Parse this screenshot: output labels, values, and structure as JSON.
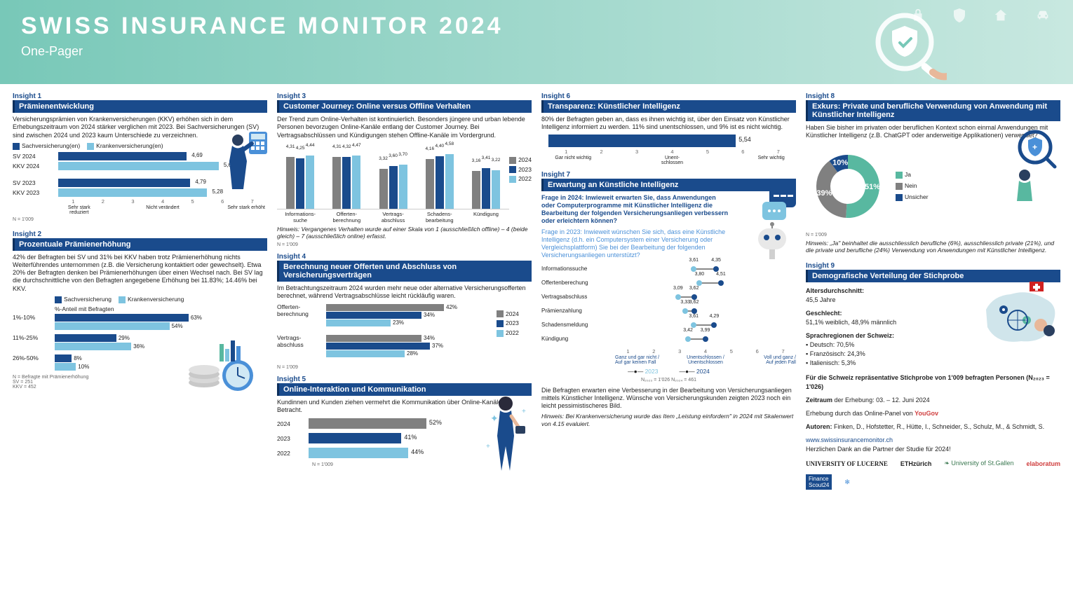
{
  "colors": {
    "navy": "#1a4b8c",
    "blue": "#4a90d8",
    "sky": "#7ec4e0",
    "grey": "#808080",
    "teal": "#58b8a0"
  },
  "header": {
    "title": "SWISS INSURANCE MONITOR 2024",
    "subtitle": "One-Pager"
  },
  "i1": {
    "label": "Insight 1",
    "title": "Prämienentwicklung",
    "text": "Versicherungsprämien von Krankenversicherungen (KKV) erhöhen sich in dem Erhebungszeitraum von 2024 stärker verglichen mit 2023. Bei Sachversicherungen (SV) sind zwischen 2024 und 2023 kaum Unterschiede zu verzeichnen.",
    "legend": [
      {
        "c": "#1a4b8c",
        "t": "Sachversicherung(en)"
      },
      {
        "c": "#7ec4e0",
        "t": "Krankenversicherung(en)"
      }
    ],
    "rows": [
      {
        "lbl": "SV  2024",
        "v": 4.69,
        "c": "#1a4b8c"
      },
      {
        "lbl": "KKV 2024",
        "v": 5.61,
        "c": "#7ec4e0"
      },
      {
        "lbl": "SV  2023",
        "v": 4.79,
        "c": "#1a4b8c"
      },
      {
        "lbl": "KKV 2023",
        "v": 5.28,
        "c": "#7ec4e0"
      }
    ],
    "scale": {
      "min": 1,
      "max": 7,
      "ticks": [
        "1",
        "2",
        "3",
        "4",
        "5",
        "6",
        "7"
      ],
      "labels": [
        "Sehr stark reduziert",
        "",
        "Nicht verändert",
        "",
        "Sehr stark erhöht"
      ]
    },
    "note": "N = 1'009"
  },
  "i2": {
    "label": "Insight 2",
    "title": "Prozentuale Prämienerhöhung",
    "text": "42% der Befragten bei SV und 31% bei KKV haben trotz Prämienerhöhung nichts Weiterführendes unternommen (z.B. die Versicherung kontaktiert oder gewechselt). Etwa 20% der Befragten denken bei Prämienerhöhungen über einen Wechsel nach. Bei SV lag die durchschnittliche von den Befragten angegebene Erhöhung bei 11.83%; 14.46% bei KKV.",
    "legend": [
      {
        "c": "#1a4b8c",
        "t": "Sachversicherung"
      },
      {
        "c": "#7ec4e0",
        "t": "Krankenversicherung"
      }
    ],
    "header_row": "%-Anteil mit Befragten",
    "groups": [
      {
        "lbl": "1%-10%",
        "sv": 63,
        "kkv": 54
      },
      {
        "lbl": "11%-25%",
        "sv": 29,
        "kkv": 36
      },
      {
        "lbl": "26%-50%",
        "sv": 8,
        "kkv": 10
      }
    ],
    "note": "N = Befragte mit Prämienerhöhung\nSV = 251\nKKV = 452"
  },
  "i3": {
    "label": "Insight 3",
    "title": "Customer Journey: Online versus Offline Verhalten",
    "text": "Der Trend zum Online-Verhalten ist kontinuierlich. Besonders jüngere und urban lebende Personen bevorzugen Online-Kanäle entlang der Customer Journey. Bei Vertragsabschlüssen und Kündigungen stehen Offline-Kanäle im Vordergrund.",
    "legend": [
      {
        "c": "#808080",
        "t": "2024"
      },
      {
        "c": "#1a4b8c",
        "t": "2023"
      },
      {
        "c": "#7ec4e0",
        "t": "2022"
      }
    ],
    "cats": [
      "Informations-\nsuche",
      "Offerten-\nberechnung",
      "Vertrags-\nabschluss",
      "Schadens-\nbearbeitung",
      "Kündigung"
    ],
    "series": {
      "2024": [
        4.31,
        4.31,
        3.32,
        4.16,
        3.16
      ],
      "2023": [
        4.25,
        4.32,
        3.6,
        4.4,
        3.41
      ],
      "2022": [
        4.44,
        4.47,
        3.7,
        4.58,
        3.22
      ]
    },
    "ymax": 5,
    "hint": "Hinweis: Vergangenes Verhalten wurde auf einer Skala von 1 (ausschließlich offline) – 4 (beide gleich) – 7 (ausschließlich online) erfasst.",
    "note": "N = 1'009"
  },
  "i4": {
    "label": "Insight 4",
    "title": "Berechnung neuer Offerten und Abschluss von Versicherungsverträgen",
    "text": "Im Betrachtungszeitraum 2024 wurden mehr neue oder alternative Versicherungsofferten berechnet, während Vertragsabschlüsse leicht rückläufig waren.",
    "legend": [
      {
        "c": "#808080",
        "t": "2024"
      },
      {
        "c": "#1a4b8c",
        "t": "2023"
      },
      {
        "c": "#7ec4e0",
        "t": "2022"
      }
    ],
    "groups": [
      {
        "lbl": "Offerten-\nberechnung",
        "vals": [
          {
            "y": "2024",
            "v": 42,
            "c": "#808080"
          },
          {
            "y": "2023",
            "v": 34,
            "c": "#1a4b8c"
          },
          {
            "y": "2022",
            "v": 23,
            "c": "#7ec4e0"
          }
        ]
      },
      {
        "lbl": "Vertrags-\nabschluss",
        "vals": [
          {
            "y": "2024",
            "v": 34,
            "c": "#808080"
          },
          {
            "y": "2023",
            "v": 37,
            "c": "#1a4b8c"
          },
          {
            "y": "2022",
            "v": 28,
            "c": "#7ec4e0"
          }
        ]
      }
    ],
    "note": "N = 1'009"
  },
  "i5": {
    "label": "Insight 5",
    "title": "Online-Interaktion und Kommunikation",
    "text": "Kundinnen und Kunden ziehen vermehrt die Kommunikation über Online-Kanäle in Betracht.",
    "rows": [
      {
        "lbl": "2024",
        "v": 52,
        "c": "#808080"
      },
      {
        "lbl": "2023",
        "v": 41,
        "c": "#1a4b8c"
      },
      {
        "lbl": "2022",
        "v": 44,
        "c": "#7ec4e0"
      }
    ],
    "note": "N = 1'009"
  },
  "i6": {
    "label": "Insight 6",
    "title": "Transparenz: Künstlicher Intelligenz",
    "text": "80% der Befragten geben an, dass es ihnen wichtig ist, über den Einsatz von Künstlicher Intelligenz informiert zu werden. 11% sind unentschlossen, und 9% ist es nicht wichtig.",
    "value": 5.54,
    "scale": {
      "min": 1,
      "max": 7,
      "ticks": [
        "1",
        "2",
        "3",
        "4",
        "5",
        "6",
        "7"
      ],
      "labels": [
        "Gar nicht wichtig",
        "",
        "Unent-\nschlossen",
        "",
        "Sehr wichtig"
      ]
    }
  },
  "i7": {
    "label": "Insight 7",
    "title": "Erwartung an Künstliche Intelligenz",
    "q2024": "Frage in 2024: Inwieweit erwarten Sie, dass Anwendungen oder Computerprogramme mit Künstlicher Intelligenz die Bearbeitung der folgenden Versicherungsanliegen verbessern oder erleichtern können?",
    "q2023": "Frage in 2023: Inwieweit wünschen Sie sich, dass eine Künstliche Intelligenz (d.h. ein Computersystem einer Versicherung oder Vergleichsplattform) Sie bei der Bearbeitung der folgenden Versicherungsanliegen unterstützt?",
    "items": [
      {
        "lbl": "Informationssuche",
        "v23": 3.61,
        "v24": 4.35
      },
      {
        "lbl": "Offertenberechung",
        "v23": 3.8,
        "v24": 4.51
      },
      {
        "lbl": "Vertragsabschluss",
        "v23": 3.09,
        "v24": 3.62
      },
      {
        "lbl": "Prämienzahlung",
        "v23": 3.33,
        "v24": 3.62
      },
      {
        "lbl": "Schadensmeldung",
        "v23": 3.61,
        "v24": 4.29
      },
      {
        "lbl": "Kündigung",
        "v23": 3.42,
        "v24": 3.99
      }
    ],
    "scale": {
      "min": 1,
      "max": 7,
      "ticks": [
        "1",
        "2",
        "3",
        "4",
        "5",
        "6",
        "7"
      ],
      "left": "Ganz und gar nicht /\nAuf gar keinen Fall",
      "mid": "Unentschlossen /\nUnentschlossen",
      "right": "Voll und ganz /\nAuf jeden Fall"
    },
    "legend": [
      {
        "c": "#7ec4e0",
        "t": "2023"
      },
      {
        "c": "#1a4b8c",
        "t": "2024"
      }
    ],
    "note": "N₂₀₂₃ = 1'026  N₂₀₂₄ = 461",
    "summary": "Die Befragten erwarten eine Verbesserung in der Bearbeitung von Versicherungsanliegen mittels Künstlicher Intelligenz. Wünsche von Versicherungskunden zeigten 2023 noch ein leicht pessimistischeres Bild.",
    "hint": "Hinweis: Bei Krankenversicherung wurde das Item „Leistung einfordern\" in 2024 mit Skalenwert von 4.15 evaluiert."
  },
  "i8": {
    "label": "Insight 8",
    "title": "Exkurs: Private und berufliche Verwendung von Anwendung mit Künstlicher Intelligenz",
    "text": "Haben Sie bisher im privaten oder beruflichen Kontext schon einmal Anwendungen mit Künstlicher Intelligenz (z.B. ChatGPT oder anderweitige Applikationen) verwendet?",
    "donut": [
      {
        "lbl": "Ja",
        "v": 51,
        "c": "#58b8a0"
      },
      {
        "lbl": "Nein",
        "v": 39,
        "c": "#808080"
      },
      {
        "lbl": "Unsicher",
        "v": 10,
        "c": "#1a4b8c"
      }
    ],
    "hint": "Hinweis: „Ja\" beinhaltet die ausschliesslich berufliche (6%), ausschliesslich private (21%), und die private und berufliche (24%) Verwendung von Anwendungen mit Künstlicher Intelligenz.",
    "note": "N = 1'009"
  },
  "i9": {
    "label": "Insight 9",
    "title": "Demografische Verteilung der Stichprobe",
    "age_label": "Altersdurchschnitt:",
    "age": "45,5 Jahre",
    "gender_label": "Geschlecht:",
    "gender": "51,1% weiblich, 48,9% männlich",
    "region_label": "Sprachregionen der Schweiz:",
    "regions": [
      "Deutsch: 70,5%",
      "Französisch: 24,3%",
      "Italienisch: 5,3%"
    ],
    "sample": "Für die Schweiz repräsentative Stichprobe von 1'009 befragten Personen (N₂₀₂₃ = 1'026)",
    "period": "Zeitraum der Erhebung: 03. – 12. Juni 2024",
    "panel_pre": "Erhebung durch das Online-Panel von ",
    "panel": "YouGov",
    "authors_pre": "Autoren: ",
    "authors": "Finken, D., Hofstetter, R., Hütte, I., Schneider, S., Schulz, M., & Schmidt, S.",
    "url": "www.swissinsurancemonitor.ch",
    "thanks": "Herzlichen Dank an die Partner der Studie für 2024!",
    "partners": [
      "UNIVERSITY OF LUCERNE",
      "ETHzürich",
      "University of St.Gallen",
      "elaboratum",
      "FinanceScout24",
      ""
    ]
  }
}
